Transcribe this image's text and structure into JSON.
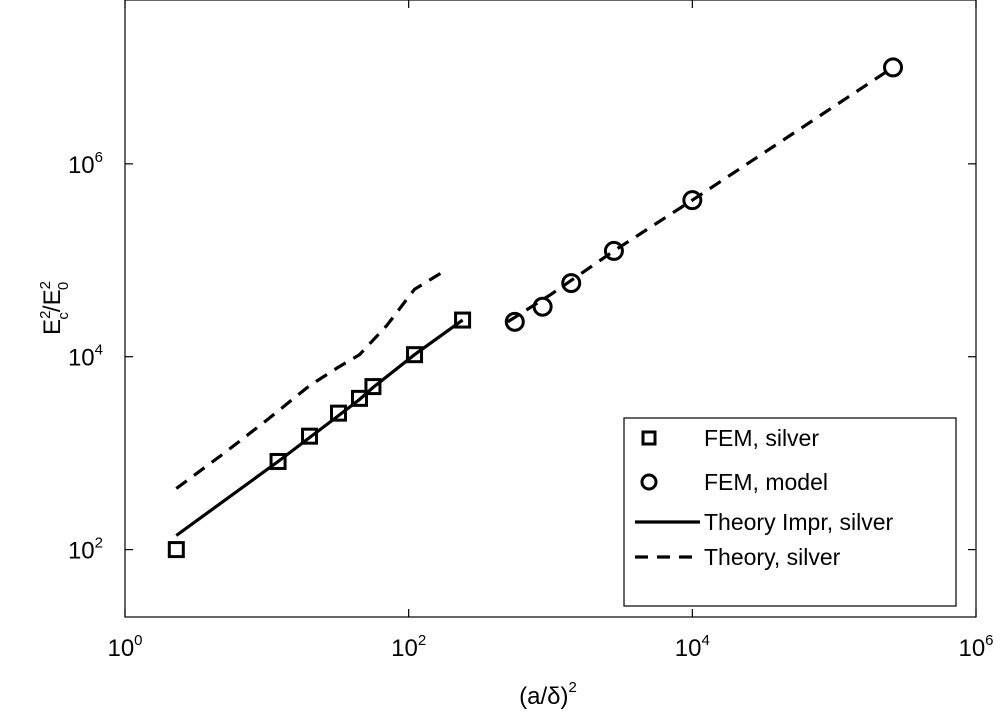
{
  "chart_data": {
    "type": "scatter",
    "xlabel": "(a/δ)",
    "xlabel_sup": "2",
    "ylabel": "E_c^2/E_0^2",
    "xscale": "log",
    "yscale": "log",
    "xlim": [
      1,
      1000000
    ],
    "ylim": [
      20,
      50000000
    ],
    "x_ticks": [
      {
        "base": "10",
        "exp": "0",
        "value": 1
      },
      {
        "base": "10",
        "exp": "2",
        "value": 100
      },
      {
        "base": "10",
        "exp": "4",
        "value": 10000
      },
      {
        "base": "10",
        "exp": "6",
        "value": 1000000
      }
    ],
    "y_ticks": [
      {
        "base": "10",
        "exp": "2",
        "value": 100
      },
      {
        "base": "10",
        "exp": "4",
        "value": 10000
      },
      {
        "base": "10",
        "exp": "6",
        "value": 1000000
      }
    ],
    "legend_position": "bottom-right",
    "grid": false,
    "series": [
      {
        "name": "FEM, silver",
        "style": "square-marker",
        "color": "#000000",
        "x": [
          2.3,
          12,
          20,
          32,
          45,
          56,
          110,
          240
        ],
        "y": [
          100,
          820,
          1500,
          2600,
          3700,
          4900,
          10500,
          24000
        ]
      },
      {
        "name": "FEM, model",
        "style": "circle-marker",
        "color": "#000000",
        "x": [
          560,
          880,
          1400,
          2800,
          10000,
          260000
        ],
        "y": [
          23000,
          33000,
          58000,
          125000,
          420000,
          10000000
        ]
      },
      {
        "name": "Theory Impr, silver",
        "style": "solid-line",
        "color": "#000000",
        "x": [
          2.3,
          12,
          20,
          32,
          45,
          56,
          110,
          240
        ],
        "y": [
          140,
          820,
          1450,
          2450,
          3600,
          4800,
          10500,
          24000
        ]
      },
      {
        "name": "Theory, silver",
        "style": "dashed-line",
        "color": "#000000",
        "x": [
          2.3,
          5,
          10,
          20,
          32,
          45,
          70,
          110,
          180,
          500,
          1000,
          2800,
          10000,
          260000
        ],
        "y": [
          430,
          1000,
          2200,
          5000,
          7800,
          10500,
          21000,
          50000,
          78000,
          23000,
          44000,
          125000,
          420000,
          10000000
        ]
      }
    ]
  }
}
